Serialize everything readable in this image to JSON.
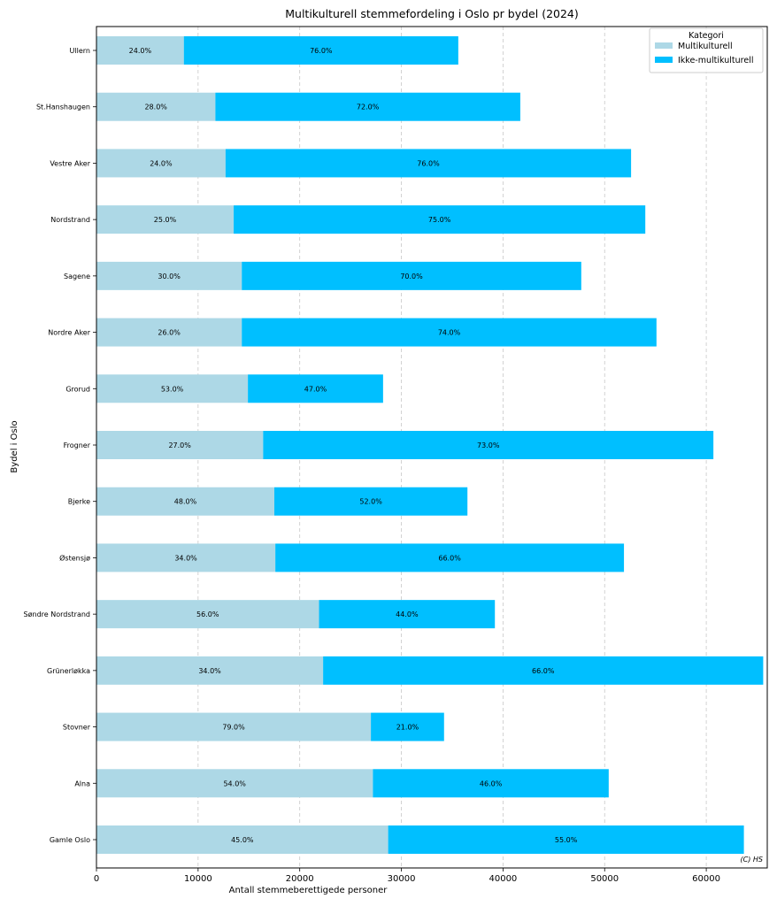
{
  "chart_data": {
    "type": "bar",
    "orientation": "horizontal",
    "stacked": true,
    "title": "Multikulturell stemmefordeling i Oslo pr bydel (2024)",
    "xlabel": "Antall stemmeberettigede personer",
    "ylabel": "Bydel i Oslo",
    "xlim": [
      0,
      66000
    ],
    "xticks": [
      0,
      10000,
      20000,
      30000,
      40000,
      50000,
      60000
    ],
    "grid": "x",
    "legend": {
      "title": "Kategori",
      "position": "top-right"
    },
    "credit": "(C) HS",
    "colors": {
      "Multikulturell": "#add8e6",
      "Ikke-multikulturell": "#00bfff"
    },
    "categories": [
      "Ullern",
      "St.Hanshaugen",
      "Vestre Aker",
      "Nordstrand",
      "Sagene",
      "Nordre Aker",
      "Grorud",
      "Frogner",
      "Bjerke",
      "Østensjø",
      "Søndre Nordstrand",
      "Grünerløkka",
      "Stovner",
      "Alna",
      "Gamle Oslo"
    ],
    "series": [
      {
        "name": "Multikulturell",
        "values": [
          8600,
          11700,
          12700,
          13500,
          14300,
          14300,
          14900,
          16400,
          17500,
          17600,
          21900,
          22300,
          27000,
          27200,
          28700
        ],
        "labels": [
          "24.0%",
          "28.0%",
          "24.0%",
          "25.0%",
          "30.0%",
          "26.0%",
          "53.0%",
          "27.0%",
          "48.0%",
          "34.0%",
          "56.0%",
          "34.0%",
          "79.0%",
          "54.0%",
          "45.0%"
        ]
      },
      {
        "name": "Ikke-multikulturell",
        "values": [
          27000,
          30000,
          39900,
          40500,
          33400,
          40800,
          13300,
          44300,
          19000,
          34300,
          17300,
          43300,
          7200,
          23200,
          35000
        ],
        "labels": [
          "76.0%",
          "72.0%",
          "76.0%",
          "75.0%",
          "70.0%",
          "74.0%",
          "47.0%",
          "73.0%",
          "52.0%",
          "66.0%",
          "44.0%",
          "66.0%",
          "21.0%",
          "46.0%",
          "55.0%"
        ]
      }
    ]
  }
}
